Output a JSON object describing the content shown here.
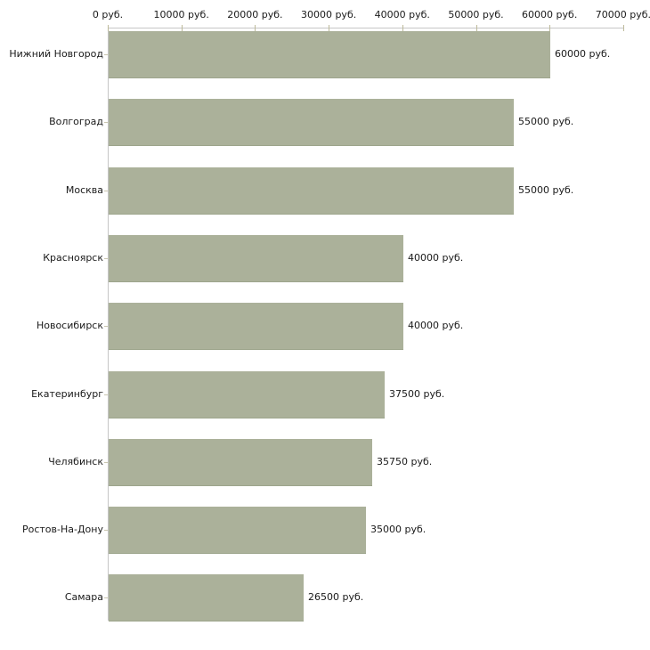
{
  "chart_data": {
    "type": "bar",
    "orientation": "horizontal",
    "title": "",
    "xlabel": "",
    "ylabel": "",
    "xlim": [
      0,
      70000
    ],
    "grid": false,
    "legend": "none",
    "categories": [
      "Нижний Новгород",
      "Волгоград",
      "Москва",
      "Красноярск",
      "Новосибирск",
      "Екатеринбург",
      "Челябинск",
      "Ростов-На-Дону",
      "Самара"
    ],
    "values": [
      60000,
      55000,
      55000,
      40000,
      40000,
      37500,
      35750,
      35000,
      26500
    ],
    "value_labels": [
      "60000 руб.",
      "55000 руб.",
      "55000 руб.",
      "40000 руб.",
      "40000 руб.",
      "37500 руб.",
      "35750 руб.",
      "35000 руб.",
      "26500 руб."
    ],
    "x_tick_values": [
      0,
      10000,
      20000,
      30000,
      40000,
      50000,
      60000,
      70000
    ],
    "x_tick_labels": [
      "0 руб.",
      "10000 руб.",
      "20000 руб.",
      "30000 руб.",
      "40000 руб.",
      "50000 руб.",
      "60000 руб.",
      "70000 руб."
    ],
    "colors": {
      "bar_fill": "#abb19a",
      "bar_edge_bottom": "#9da58c",
      "axis_line": "#c6c6c6",
      "x_tick": "#bdba9a",
      "y_tick": "#c9c6b0",
      "text": "#1a1a1a",
      "background": "#ffffff"
    }
  }
}
